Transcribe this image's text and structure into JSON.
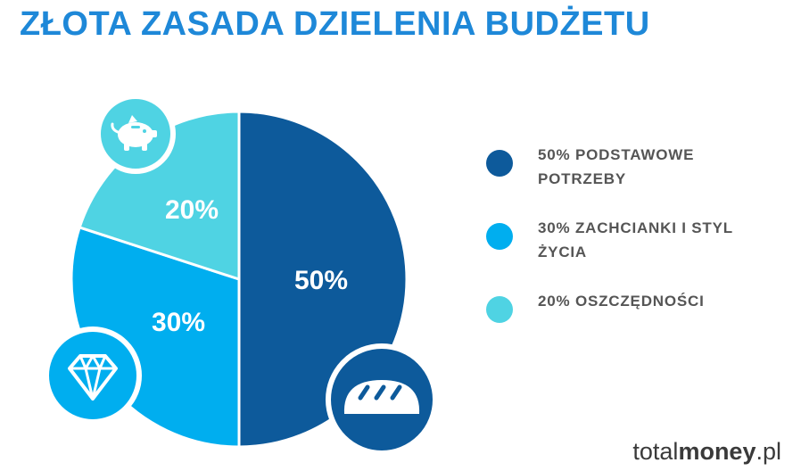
{
  "title": "ZŁOTA ZASADA DZIELENIA BUDŻETU",
  "chart_data": {
    "type": "pie",
    "slices": [
      {
        "label": "50%",
        "value": 50,
        "color": "#0d5a9b",
        "icon": "bread-icon",
        "legend": "50%  PODSTAWOWE POTRZEBY"
      },
      {
        "label": "30%",
        "value": 30,
        "color": "#00aeef",
        "icon": "diamond-icon",
        "legend": "30% ZACHCIANKI I STYL ŻYCIA"
      },
      {
        "label": "20%",
        "value": 20,
        "color": "#4fd3e3",
        "icon": "piggy-bank-icon",
        "legend": "20% OSZCZĘDNOŚCI"
      }
    ],
    "legend_position": "right"
  },
  "brand": {
    "part1": "total",
    "part2": "money",
    "part3": ".pl"
  },
  "colors": {
    "title": "#1e88d8",
    "legend_text": "#555555"
  }
}
